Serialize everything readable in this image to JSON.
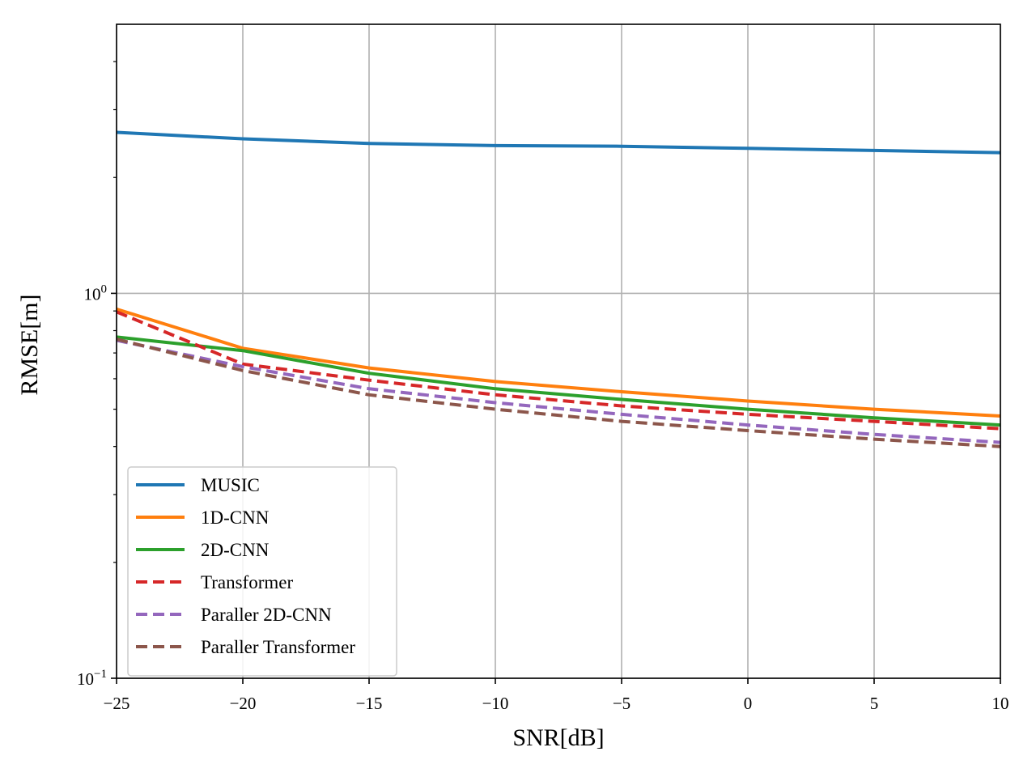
{
  "chart_data": {
    "type": "line",
    "title": "",
    "xlabel": "SNR[dB]",
    "ylabel": "RMSE[m]",
    "yscale": "log",
    "xlim": [
      -25,
      10
    ],
    "ylim": [
      0.1,
      5
    ],
    "grid": true,
    "legend_position": "lower-left",
    "x": [
      -25,
      -20,
      -15,
      -10,
      -5,
      0,
      5,
      10
    ],
    "xticks": [
      -25,
      -20,
      -15,
      -10,
      -5,
      0,
      5,
      10
    ],
    "xtick_labels": [
      "−25",
      "−20",
      "−15",
      "−10",
      "−5",
      "0",
      "5",
      "10"
    ],
    "ytick_labels": [
      {
        "value": 1,
        "base": "10",
        "exp": "0"
      },
      {
        "value": 0.1,
        "base": "10",
        "exp": "−1"
      }
    ],
    "series": [
      {
        "name": "MUSIC",
        "color": "#1f77b4",
        "dashed": false,
        "values": [
          2.62,
          2.52,
          2.45,
          2.42,
          2.41,
          2.38,
          2.35,
          2.32
        ]
      },
      {
        "name": "1D-CNN",
        "color": "#ff7f0e",
        "dashed": false,
        "values": [
          0.91,
          0.72,
          0.64,
          0.59,
          0.555,
          0.525,
          0.5,
          0.48
        ]
      },
      {
        "name": "2D-CNN",
        "color": "#2ca02c",
        "dashed": false,
        "values": [
          0.77,
          0.71,
          0.62,
          0.565,
          0.53,
          0.5,
          0.475,
          0.455
        ]
      },
      {
        "name": "Transformer",
        "color": "#d62728",
        "dashed": true,
        "values": [
          0.895,
          0.655,
          0.595,
          0.545,
          0.51,
          0.485,
          0.465,
          0.445
        ]
      },
      {
        "name": "Paraller 2D-CNN",
        "color": "#9467bd",
        "dashed": true,
        "values": [
          0.755,
          0.645,
          0.565,
          0.52,
          0.485,
          0.455,
          0.43,
          0.41
        ]
      },
      {
        "name": "Paraller Transformer",
        "color": "#8c564b",
        "dashed": true,
        "values": [
          0.76,
          0.63,
          0.545,
          0.5,
          0.465,
          0.44,
          0.418,
          0.4
        ]
      }
    ]
  }
}
